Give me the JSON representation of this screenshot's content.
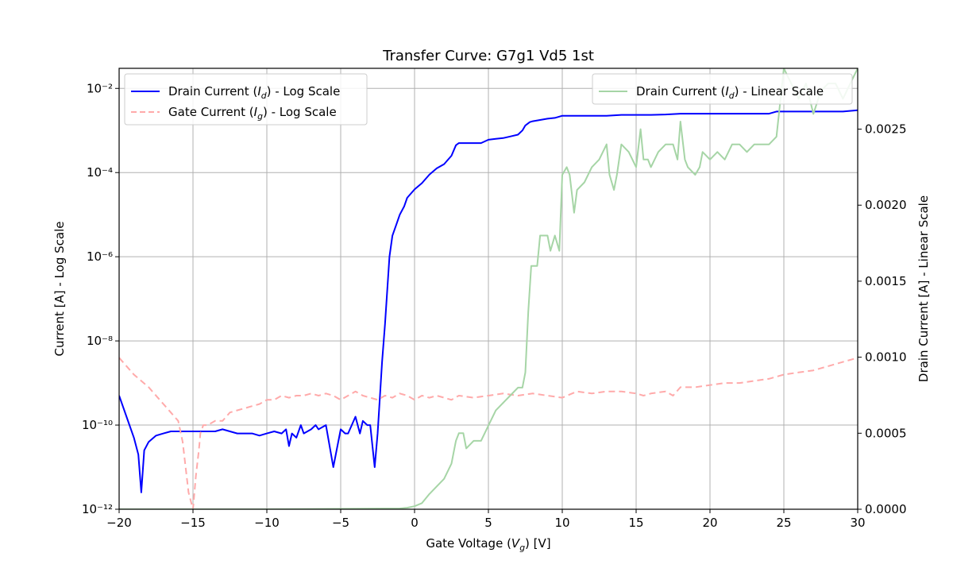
{
  "chart_data": {
    "type": "line",
    "title": "Transfer Curve: G7g1 Vd5 1st",
    "xlabel": "Gate Voltage ($V_g$) [V]",
    "ylabel_left": "Current [A] - Log Scale",
    "ylabel_right": "Drain Current [A] - Linear Scale",
    "xlim": [
      -20,
      30
    ],
    "ylim_left_log": [
      1e-12,
      0.03
    ],
    "ylim_right": [
      0,
      0.0029
    ],
    "x_ticks": [
      -20,
      -15,
      -10,
      -5,
      0,
      5,
      10,
      15,
      20,
      25,
      30
    ],
    "x_tick_labels": [
      "−20",
      "−15",
      "−10",
      "−5",
      "0",
      "5",
      "10",
      "15",
      "20",
      "25",
      "30"
    ],
    "y_left_ticks_exp": [
      -12,
      -10,
      -8,
      -6,
      -4,
      -2
    ],
    "y_left_tick_labels": [
      "10⁻¹²",
      "10⁻¹⁰",
      "10⁻⁸",
      "10⁻⁶",
      "10⁻⁴",
      "10⁻²"
    ],
    "y_right_ticks": [
      0,
      0.0005,
      0.001,
      0.0015,
      0.002,
      0.0025
    ],
    "y_right_tick_labels": [
      "0.0000",
      "0.0005",
      "0.0010",
      "0.0015",
      "0.0020",
      "0.0025"
    ],
    "grid": true,
    "legends": [
      {
        "placement": "top-left",
        "entries": [
          {
            "label": "Drain Current ($I_d$) - Log Scale",
            "color": "#0000ff",
            "style": "solid"
          },
          {
            "label": "Gate Current ($I_g$) - Log Scale",
            "color": "#ffaaaa",
            "style": "dashed"
          }
        ]
      },
      {
        "placement": "top-right",
        "entries": [
          {
            "label": "Drain Current ($I_d$) - Linear Scale",
            "color": "#a6d5a6",
            "style": "solid"
          }
        ]
      }
    ],
    "series": [
      {
        "name": "Drain Current ($I_d$) - Log Scale",
        "axis": "left-log",
        "color": "#0000ff",
        "x": [
          -20,
          -19.5,
          -19,
          -18.7,
          -18.5,
          -18.3,
          -18,
          -17.5,
          -17,
          -16.5,
          -16,
          -15.5,
          -15,
          -14.5,
          -14,
          -13.5,
          -13,
          -12.5,
          -12,
          -11.5,
          -11,
          -10.5,
          -10,
          -9.5,
          -9,
          -8.7,
          -8.5,
          -8.3,
          -8,
          -7.7,
          -7.5,
          -7,
          -6.7,
          -6.5,
          -6,
          -5.5,
          -5,
          -4.7,
          -4.5,
          -4,
          -3.7,
          -3.5,
          -3.2,
          -3,
          -2.7,
          -2.5,
          -2.2,
          -2,
          -1.7,
          -1.5,
          -1.2,
          -1,
          -0.7,
          -0.5,
          0,
          0.5,
          1,
          1.5,
          2,
          2.5,
          2.8,
          3,
          3.5,
          4,
          4.5,
          5,
          5.5,
          6,
          6.5,
          7,
          7.3,
          7.5,
          7.8,
          8,
          8.5,
          9,
          9.5,
          10,
          10.5,
          11,
          11.5,
          12,
          13,
          14,
          15,
          15.5,
          16,
          17,
          18,
          19,
          20,
          21,
          22,
          23,
          24,
          24.5,
          25,
          26,
          27,
          28,
          29,
          30
        ],
        "y_exp": [
          -9.3,
          -9.8,
          -10.3,
          -10.7,
          -11.6,
          -10.6,
          -10.4,
          -10.25,
          -10.2,
          -10.15,
          -10.15,
          -10.15,
          -10.15,
          -10.15,
          -10.15,
          -10.15,
          -10.1,
          -10.15,
          -10.2,
          -10.2,
          -10.2,
          -10.25,
          -10.2,
          -10.15,
          -10.2,
          -10.1,
          -10.5,
          -10.2,
          -10.3,
          -10.0,
          -10.2,
          -10.1,
          -10.0,
          -10.1,
          -10.0,
          -11.0,
          -10.1,
          -10.2,
          -10.2,
          -9.8,
          -10.2,
          -9.9,
          -10.0,
          -10.0,
          -11.0,
          -10.2,
          -8.5,
          -7.6,
          -6.0,
          -5.5,
          -5.2,
          -5.0,
          -4.8,
          -4.6,
          -4.4,
          -4.25,
          -4.05,
          -3.9,
          -3.8,
          -3.6,
          -3.35,
          -3.3,
          -3.3,
          -3.3,
          -3.3,
          -3.22,
          -3.2,
          -3.18,
          -3.14,
          -3.1,
          -3.0,
          -2.88,
          -2.8,
          -2.78,
          -2.75,
          -2.72,
          -2.7,
          -2.65,
          -2.65,
          -2.65,
          -2.65,
          -2.65,
          -2.65,
          -2.63,
          -2.63,
          -2.63,
          -2.63,
          -2.62,
          -2.6,
          -2.6,
          -2.6,
          -2.6,
          -2.6,
          -2.6,
          -2.6,
          -2.55,
          -2.55,
          -2.55,
          -2.55,
          -2.55,
          -2.55,
          -2.52
        ]
      },
      {
        "name": "Gate Current ($I_g$) - Log Scale",
        "axis": "left-log",
        "color": "#ffaaaa",
        "x": [
          -20,
          -19,
          -18,
          -17,
          -16.5,
          -16,
          -15.7,
          -15.5,
          -15.3,
          -15,
          -14.8,
          -14.6,
          -14.5,
          -14.3,
          -14,
          -13.5,
          -13,
          -12.5,
          -12,
          -11.5,
          -11,
          -10.5,
          -10,
          -9.5,
          -9,
          -8.5,
          -8,
          -7.5,
          -7,
          -6.5,
          -6,
          -5.5,
          -5,
          -4.5,
          -4,
          -3.5,
          -3,
          -2.5,
          -2,
          -1.5,
          -1,
          -0.5,
          0,
          0.5,
          1,
          1.5,
          2,
          2.5,
          3,
          4,
          5,
          6,
          7,
          8,
          9,
          10,
          11,
          12,
          13,
          14,
          15,
          15.5,
          16,
          17,
          17.5,
          18,
          19,
          20,
          21,
          22,
          23,
          24,
          25,
          26,
          27,
          28,
          29,
          30
        ],
        "y_exp": [
          -8.4,
          -8.8,
          -9.1,
          -9.5,
          -9.7,
          -9.9,
          -10.4,
          -11.0,
          -11.6,
          -12.0,
          -11.2,
          -10.6,
          -10.2,
          -10.0,
          -10.0,
          -9.9,
          -9.9,
          -9.7,
          -9.65,
          -9.6,
          -9.55,
          -9.5,
          -9.4,
          -9.4,
          -9.3,
          -9.35,
          -9.3,
          -9.3,
          -9.25,
          -9.3,
          -9.25,
          -9.3,
          -9.4,
          -9.3,
          -9.2,
          -9.3,
          -9.35,
          -9.4,
          -9.3,
          -9.35,
          -9.25,
          -9.3,
          -9.4,
          -9.3,
          -9.35,
          -9.3,
          -9.35,
          -9.4,
          -9.3,
          -9.35,
          -9.3,
          -9.25,
          -9.3,
          -9.25,
          -9.3,
          -9.35,
          -9.2,
          -9.25,
          -9.2,
          -9.2,
          -9.25,
          -9.3,
          -9.25,
          -9.2,
          -9.3,
          -9.1,
          -9.1,
          -9.05,
          -9.0,
          -9.0,
          -8.95,
          -8.9,
          -8.8,
          -8.75,
          -8.7,
          -8.6,
          -8.5,
          -8.4
        ]
      },
      {
        "name": "Drain Current ($I_d$) - Linear Scale",
        "axis": "right-linear",
        "color": "#a6d5a6",
        "x": [
          -20,
          -10,
          -1,
          -0.5,
          0,
          0.5,
          1,
          1.5,
          2,
          2.5,
          2.7,
          2.8,
          3,
          3.3,
          3.5,
          4,
          4.5,
          5,
          5.5,
          6,
          6.5,
          7,
          7.3,
          7.5,
          7.7,
          7.9,
          8,
          8.3,
          8.5,
          8.7,
          9,
          9.2,
          9.5,
          9.8,
          10,
          10.3,
          10.5,
          10.8,
          11,
          11.5,
          12,
          12.5,
          13,
          13.2,
          13.5,
          13.7,
          14,
          14.5,
          15,
          15.3,
          15.5,
          15.8,
          16,
          16.5,
          17,
          17.5,
          17.8,
          18,
          18.3,
          18.5,
          19,
          19.3,
          19.5,
          20,
          20.5,
          21,
          21.5,
          22,
          22.5,
          23,
          23.5,
          24,
          24.5,
          25,
          25.5,
          26,
          26.5,
          27,
          27.5,
          28,
          28.5,
          29,
          29.5,
          30
        ],
        "y": [
          0,
          0,
          5e-06,
          1e-05,
          2e-05,
          4e-05,
          0.0001,
          0.00015,
          0.0002,
          0.0003,
          0.0004,
          0.00045,
          0.0005,
          0.0005,
          0.0004,
          0.00045,
          0.00045,
          0.00055,
          0.00065,
          0.0007,
          0.00075,
          0.0008,
          0.0008,
          0.0009,
          0.0013,
          0.0016,
          0.0016,
          0.0016,
          0.0018,
          0.0018,
          0.0018,
          0.0017,
          0.0018,
          0.0017,
          0.0022,
          0.00225,
          0.0022,
          0.00195,
          0.0021,
          0.00215,
          0.00225,
          0.0023,
          0.0024,
          0.0022,
          0.0021,
          0.0022,
          0.0024,
          0.00235,
          0.00225,
          0.0025,
          0.0023,
          0.0023,
          0.00225,
          0.00235,
          0.0024,
          0.0024,
          0.0023,
          0.00255,
          0.0023,
          0.00225,
          0.0022,
          0.00225,
          0.00235,
          0.0023,
          0.00235,
          0.0023,
          0.0024,
          0.0024,
          0.00235,
          0.0024,
          0.0024,
          0.0024,
          0.00245,
          0.0029,
          0.0028,
          0.0027,
          0.0028,
          0.0026,
          0.00275,
          0.0028,
          0.0028,
          0.0027,
          0.0028,
          0.0029
        ]
      }
    ]
  }
}
